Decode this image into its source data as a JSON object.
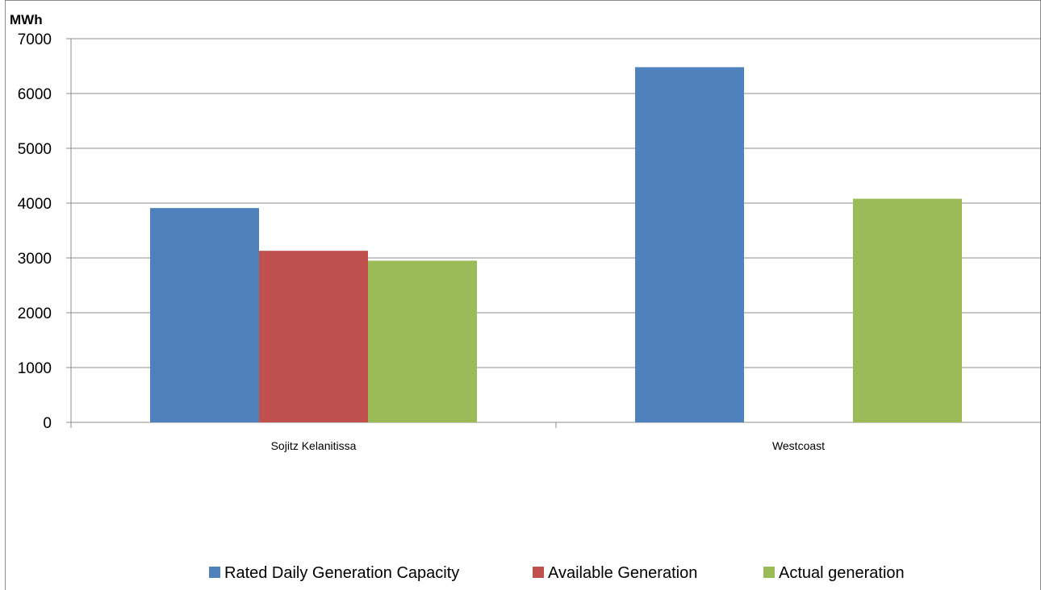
{
  "chart_data": {
    "type": "bar",
    "unit_label": "MWh",
    "categories": [
      "Sojitz Kelanitissa",
      "Westcoast"
    ],
    "series": [
      {
        "name": "Rated Daily Generation Capacity",
        "color": "#4f81bd",
        "values": [
          3910,
          6480
        ]
      },
      {
        "name": "Available Generation",
        "color": "#c0504d",
        "values": [
          3130,
          0
        ]
      },
      {
        "name": "Actual generation",
        "color": "#9bbb59",
        "values": [
          2950,
          4080
        ]
      }
    ],
    "ylim": [
      0,
      7000
    ],
    "yticks": [
      0,
      1000,
      2000,
      3000,
      4000,
      5000,
      6000,
      7000
    ],
    "grid": true,
    "legend_position": "bottom"
  }
}
